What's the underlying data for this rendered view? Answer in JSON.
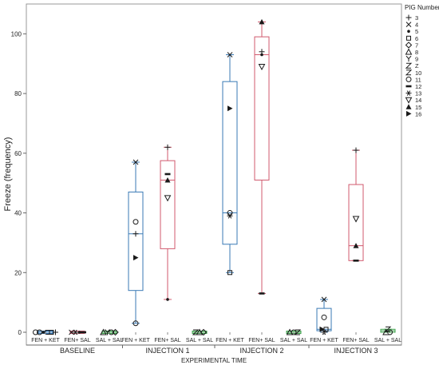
{
  "chart_data": {
    "type": "box",
    "ylabel": "Freeze (frequency)",
    "xlabel": "EXPERIMENTAL TIME",
    "ylim": [
      0,
      110
    ],
    "yticks": [
      0,
      20,
      40,
      60,
      80,
      100
    ],
    "grid": false,
    "legend": {
      "title": "PIG Number",
      "placement": "right",
      "entries": [
        {
          "label": "3",
          "marker": "+"
        },
        {
          "label": "4",
          "marker": "x"
        },
        {
          "label": "5",
          "marker": "dot"
        },
        {
          "label": "6",
          "marker": "square"
        },
        {
          "label": "7",
          "marker": "diamond"
        },
        {
          "label": "8",
          "marker": "triangle-open"
        },
        {
          "label": "9",
          "marker": "Y"
        },
        {
          "label": "Z",
          "marker": "Z"
        },
        {
          "label": "10",
          "marker": "Z"
        },
        {
          "label": "11",
          "marker": "circle"
        },
        {
          "label": "12",
          "marker": "dash"
        },
        {
          "label": "13",
          "marker": "asterisk"
        },
        {
          "label": "14",
          "marker": "triangle-down"
        },
        {
          "label": "15",
          "marker": "triangle-up"
        },
        {
          "label": "16",
          "marker": "triangle-right"
        }
      ]
    },
    "groups": [
      {
        "label": "BASELINE",
        "conditions": [
          {
            "label": "FEN + KET",
            "color": "#3a7ab5",
            "stats": {
              "min": 0,
              "q1": 0,
              "median": 0,
              "q3": 0,
              "max": 0
            },
            "points": [
              {
                "marker": "circle",
                "y": 0
              },
              {
                "marker": "circle",
                "y": 0
              },
              {
                "marker": "dot",
                "y": 0
              },
              {
                "marker": "square",
                "y": 0
              },
              {
                "marker": "square",
                "y": 0
              },
              {
                "marker": "+",
                "y": 0
              }
            ]
          },
          {
            "label": "FEN+ SAL",
            "color": "#d05a6e",
            "stats": {
              "min": 0,
              "q1": 0,
              "median": 0,
              "q3": 0,
              "max": 0
            },
            "points": [
              {
                "marker": "x",
                "y": 0
              },
              {
                "marker": "asterisk",
                "y": 0
              },
              {
                "marker": "dot",
                "y": 0
              },
              {
                "marker": "dash",
                "y": 0
              }
            ]
          },
          {
            "label": "SAL + SAL",
            "color": "#3fa34d",
            "stats": {
              "min": 0,
              "q1": 0,
              "median": 0,
              "q3": 0,
              "max": 0
            },
            "points": [
              {
                "marker": "triangle-open",
                "y": 0
              },
              {
                "marker": "Y",
                "y": 0
              },
              {
                "marker": "circle",
                "y": 0
              },
              {
                "marker": "diamond",
                "y": 0
              }
            ]
          }
        ]
      },
      {
        "label": "INJECTION 1",
        "conditions": [
          {
            "label": "FEN + KET",
            "color": "#3a7ab5",
            "stats": {
              "min": 3,
              "q1": 14,
              "median": 33,
              "q3": 47,
              "max": 57
            },
            "points": [
              {
                "marker": "x",
                "y": 57
              },
              {
                "marker": "circle",
                "y": 37
              },
              {
                "marker": "+",
                "y": 33
              },
              {
                "marker": "triangle-right",
                "y": 25
              },
              {
                "marker": "circle",
                "y": 3
              }
            ]
          },
          {
            "label": "FEN+ SAL",
            "color": "#d05a6e",
            "stats": {
              "min": 11,
              "q1": 28,
              "median": 51,
              "q3": 57.5,
              "max": 62
            },
            "points": [
              {
                "marker": "+",
                "y": 62
              },
              {
                "marker": "dash",
                "y": 53
              },
              {
                "marker": "triangle-up",
                "y": 51
              },
              {
                "marker": "triangle-down",
                "y": 45
              },
              {
                "marker": "dot",
                "y": 11
              }
            ]
          },
          {
            "label": "SAL + SAL",
            "color": "#3fa34d",
            "stats": {
              "min": 0,
              "q1": 0,
              "median": 0,
              "q3": 0,
              "max": 0
            },
            "points": [
              {
                "marker": "Z",
                "y": 0
              },
              {
                "marker": "triangle-open",
                "y": 0
              },
              {
                "marker": "diamond",
                "y": 0
              }
            ]
          }
        ]
      },
      {
        "label": "INJECTION 2",
        "conditions": [
          {
            "label": "FEN + KET",
            "color": "#3a7ab5",
            "stats": {
              "min": 20,
              "q1": 29.5,
              "median": 40,
              "q3": 84,
              "max": 93
            },
            "points": [
              {
                "marker": "x",
                "y": 93
              },
              {
                "marker": "triangle-right",
                "y": 75
              },
              {
                "marker": "circle",
                "y": 40
              },
              {
                "marker": "asterisk",
                "y": 39
              },
              {
                "marker": "square",
                "y": 20
              }
            ]
          },
          {
            "label": "FEN+ SAL",
            "color": "#d05a6e",
            "stats": {
              "min": 13,
              "q1": 51,
              "median": 93,
              "q3": 99,
              "max": 104
            },
            "points": [
              {
                "marker": "triangle-up",
                "y": 104
              },
              {
                "marker": "+",
                "y": 94
              },
              {
                "marker": "dot",
                "y": 93
              },
              {
                "marker": "triangle-down",
                "y": 89
              },
              {
                "marker": "dash",
                "y": 13
              }
            ]
          },
          {
            "label": "SAL + SAL",
            "color": "#3fa34d",
            "stats": {
              "min": 0,
              "q1": 0,
              "median": 0,
              "q3": 0,
              "max": 0
            },
            "points": [
              {
                "marker": "triangle-open",
                "y": 0
              },
              {
                "marker": "circle",
                "y": 0
              },
              {
                "marker": "Z",
                "y": 0
              }
            ]
          }
        ]
      },
      {
        "label": "INJECTION 3",
        "conditions": [
          {
            "label": "FEN + KET",
            "color": "#3a7ab5",
            "stats": {
              "min": 0,
              "q1": 0.5,
              "median": 1,
              "q3": 8,
              "max": 11
            },
            "points": [
              {
                "marker": "x",
                "y": 11
              },
              {
                "marker": "circle",
                "y": 5
              },
              {
                "marker": "triangle-right",
                "y": 1
              },
              {
                "marker": "square",
                "y": 1
              },
              {
                "marker": "asterisk",
                "y": 0
              }
            ]
          },
          {
            "label": "FEN+ SAL",
            "color": "#d05a6e",
            "stats": {
              "min": 24,
              "q1": 24,
              "median": 29,
              "q3": 49.5,
              "max": 61
            },
            "points": [
              {
                "marker": "+",
                "y": 61
              },
              {
                "marker": "triangle-down",
                "y": 38
              },
              {
                "marker": "triangle-up",
                "y": 29
              },
              {
                "marker": "dash",
                "y": 24
              }
            ]
          },
          {
            "label": "SAL + SAL",
            "color": "#3fa34d",
            "stats": {
              "min": 0,
              "q1": 0,
              "median": 0.5,
              "q3": 1,
              "max": 1
            },
            "points": [
              {
                "marker": "Z",
                "y": 1
              },
              {
                "marker": "triangle-open",
                "y": 0
              },
              {
                "marker": "circle",
                "y": 0
              }
            ]
          }
        ]
      }
    ]
  }
}
